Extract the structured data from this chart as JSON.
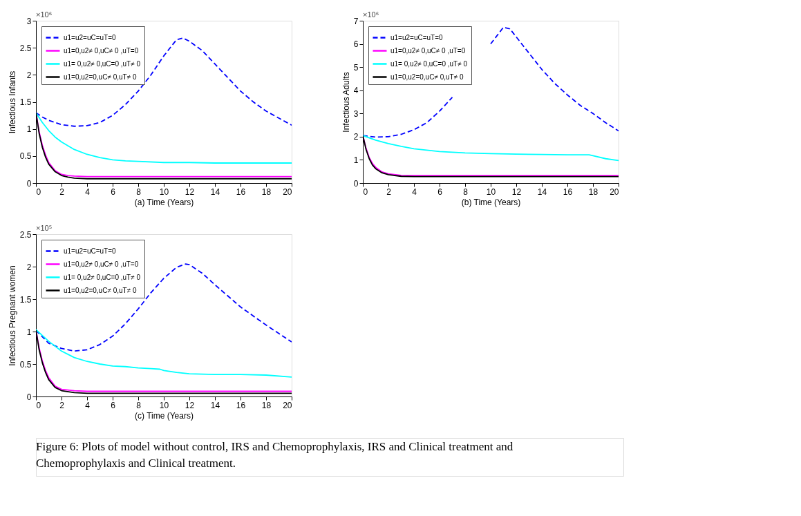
{
  "chart_data": [
    {
      "type": "line",
      "xlabel": "(a)   Time (Years)",
      "ylabel": "Infectious Infants",
      "annotations": [
        "×10⁶"
      ],
      "xlim": [
        0,
        20
      ],
      "xticks": [
        0,
        2,
        4,
        6,
        8,
        10,
        12,
        14,
        16,
        18,
        20
      ],
      "ylim": [
        0,
        3
      ],
      "yticks": [
        0,
        0.5,
        1,
        1.5,
        2,
        2.5,
        3
      ],
      "grid": false,
      "legend": "top left",
      "marker": "none",
      "series": [
        {
          "name": "u1=u2=uC=uT=0",
          "color": "#0000ff",
          "line_style": "dashed",
          "x": [
            0,
            0.5,
            1,
            2,
            3,
            4,
            5,
            6,
            7,
            8,
            9,
            10,
            11,
            11.5,
            12,
            13,
            14,
            15,
            16,
            17,
            18,
            19,
            20
          ],
          "values": [
            1.3,
            1.22,
            1.16,
            1.08,
            1.05,
            1.06,
            1.12,
            1.25,
            1.45,
            1.7,
            2.0,
            2.35,
            2.65,
            2.68,
            2.62,
            2.45,
            2.2,
            1.95,
            1.7,
            1.5,
            1.33,
            1.2,
            1.07
          ]
        },
        {
          "name": "u1=0,u2≠ 0,uC≠ 0 ,uT=0",
          "color": "#ff00ff",
          "line_style": "solid",
          "x": [
            0,
            0.25,
            0.5,
            0.75,
            1,
            1.5,
            2,
            2.5,
            3,
            4,
            6,
            8,
            10,
            12,
            14,
            16,
            18,
            20
          ],
          "values": [
            1.3,
            0.95,
            0.7,
            0.52,
            0.38,
            0.23,
            0.16,
            0.14,
            0.13,
            0.12,
            0.12,
            0.12,
            0.12,
            0.12,
            0.12,
            0.12,
            0.12,
            0.12
          ]
        },
        {
          "name": "u1= 0,u2≠ 0,uC=0 ,uT≠ 0",
          "color": "#00ffff",
          "line_style": "solid",
          "x": [
            0,
            0.5,
            1,
            1.5,
            2,
            3,
            4,
            5,
            6,
            7,
            8,
            10,
            12,
            14,
            16,
            18,
            20
          ],
          "values": [
            1.3,
            1.12,
            0.97,
            0.85,
            0.76,
            0.62,
            0.53,
            0.47,
            0.43,
            0.41,
            0.4,
            0.38,
            0.38,
            0.37,
            0.37,
            0.37,
            0.37
          ]
        },
        {
          "name": "u1=0,u2=0,uC≠ 0,uT≠ 0",
          "color": "#000000",
          "line_style": "solid",
          "x": [
            0,
            0.25,
            0.5,
            0.75,
            1,
            1.5,
            2,
            2.5,
            3,
            4,
            6,
            8,
            10,
            12,
            14,
            16,
            18,
            20
          ],
          "values": [
            1.3,
            0.92,
            0.66,
            0.48,
            0.35,
            0.21,
            0.14,
            0.11,
            0.09,
            0.08,
            0.08,
            0.08,
            0.08,
            0.08,
            0.08,
            0.08,
            0.08,
            0.08
          ]
        }
      ]
    },
    {
      "type": "line",
      "xlabel": "(b)   Time (Years)",
      "ylabel": "Infectious Adults",
      "annotations": [
        "×10⁶"
      ],
      "xlim": [
        0,
        20
      ],
      "xticks": [
        0,
        2,
        4,
        6,
        8,
        10,
        12,
        14,
        16,
        18,
        20
      ],
      "ylim": [
        0,
        7
      ],
      "yticks": [
        0,
        1,
        2,
        3,
        4,
        5,
        6,
        7
      ],
      "grid": false,
      "legend": "top left",
      "marker": "none",
      "series": [
        {
          "name": "u1=u2=uC=uT=0",
          "color": "#0000ff",
          "line_style": "dashed",
          "x": [
            0,
            1,
            2,
            3,
            4,
            5,
            6,
            7,
            8,
            9,
            10,
            11,
            11.5,
            12,
            13,
            14,
            15,
            16,
            17,
            18,
            19,
            20
          ],
          "values": [
            2.05,
            1.98,
            2.0,
            2.1,
            2.3,
            2.6,
            3.1,
            3.7,
            null,
            null,
            6.0,
            6.72,
            6.65,
            6.3,
            5.6,
            4.9,
            4.3,
            3.8,
            3.35,
            3.0,
            2.6,
            2.25
          ]
        },
        {
          "name": "u1=0,u2≠ 0,uC≠ 0 ,uT=0",
          "color": "#ff00ff",
          "line_style": "solid",
          "x": [
            0,
            0.25,
            0.5,
            0.75,
            1,
            1.5,
            2,
            3,
            4,
            6,
            8,
            10,
            12,
            14,
            16,
            18,
            20
          ],
          "values": [
            2.05,
            1.5,
            1.1,
            0.85,
            0.68,
            0.48,
            0.4,
            0.33,
            0.32,
            0.32,
            0.32,
            0.32,
            0.32,
            0.32,
            0.32,
            0.32,
            0.32
          ]
        },
        {
          "name": "u1= 0,u2≠ 0,uC=0 ,uT≠ 0",
          "color": "#00ffff",
          "line_style": "solid",
          "x": [
            0,
            1,
            2,
            3,
            4,
            6,
            8,
            10,
            12,
            14,
            16,
            17.7,
            18,
            19,
            20
          ],
          "values": [
            2.05,
            1.85,
            1.7,
            1.58,
            1.48,
            1.36,
            1.3,
            1.27,
            1.25,
            1.23,
            1.22,
            1.22,
            1.18,
            1.05,
            0.97
          ]
        },
        {
          "name": "u1=0,u2=0,uC≠ 0,uT≠ 0",
          "color": "#000000",
          "line_style": "solid",
          "x": [
            0,
            0.25,
            0.5,
            0.75,
            1,
            1.5,
            2,
            3,
            4,
            6,
            8,
            10,
            12,
            14,
            16,
            18,
            20
          ],
          "values": [
            2.05,
            1.45,
            1.05,
            0.78,
            0.62,
            0.44,
            0.36,
            0.29,
            0.28,
            0.28,
            0.28,
            0.28,
            0.28,
            0.28,
            0.28,
            0.28,
            0.28
          ]
        }
      ]
    },
    {
      "type": "line",
      "xlabel": "(c)   Time (Years)",
      "ylabel": "Infectious Pregnant women",
      "annotations": [
        "×10⁵",
        "Figure 6: Plots of model without control, IRS and Chemoprophylaxis, IRS and Clinical treatment and Chemoprophylaxis and Clinical treatment."
      ],
      "xlim": [
        0,
        20
      ],
      "xticks": [
        0,
        2,
        4,
        6,
        8,
        10,
        12,
        14,
        16,
        18,
        20
      ],
      "ylim": [
        0,
        2.5
      ],
      "yticks": [
        0,
        0.5,
        1,
        1.5,
        2,
        2.5
      ],
      "grid": false,
      "legend": "top left",
      "marker": "none",
      "series": [
        {
          "name": "u1=u2=uC=uT=0",
          "color": "#0000ff",
          "line_style": "dashed",
          "x": [
            0,
            1,
            2,
            3,
            4,
            5,
            6,
            7,
            8,
            9,
            10,
            11,
            11.7,
            12,
            13,
            14,
            15,
            16,
            17,
            18,
            19,
            20
          ],
          "values": [
            1.02,
            0.82,
            0.74,
            0.7,
            0.72,
            0.8,
            0.93,
            1.12,
            1.35,
            1.6,
            1.82,
            1.99,
            2.04,
            2.03,
            1.9,
            1.72,
            1.55,
            1.38,
            1.24,
            1.1,
            0.97,
            0.84
          ]
        },
        {
          "name": "u1=0,u2≠ 0,uC≠ 0 ,uT=0",
          "color": "#ff00ff",
          "line_style": "solid",
          "x": [
            0,
            0.25,
            0.5,
            0.75,
            1,
            1.5,
            2,
            3,
            4,
            6,
            8,
            10,
            12,
            14,
            16,
            18,
            20
          ],
          "values": [
            1.02,
            0.75,
            0.55,
            0.4,
            0.29,
            0.16,
            0.11,
            0.09,
            0.08,
            0.08,
            0.08,
            0.08,
            0.08,
            0.08,
            0.08,
            0.08,
            0.08
          ]
        },
        {
          "name": "u1= 0,u2≠ 0,uC=0 ,uT≠ 0",
          "color": "#00ffff",
          "line_style": "solid",
          "x": [
            0,
            1,
            2,
            3,
            4,
            5,
            6,
            7,
            8,
            9,
            9.7,
            10,
            11,
            12,
            14,
            16,
            18,
            20
          ],
          "values": [
            1.03,
            0.85,
            0.7,
            0.6,
            0.54,
            0.5,
            0.47,
            0.46,
            0.44,
            0.43,
            0.42,
            0.4,
            0.37,
            0.35,
            0.34,
            0.34,
            0.33,
            0.3
          ]
        },
        {
          "name": "u1=0,u2=0,uC≠ 0,uT≠ 0",
          "color": "#000000",
          "line_style": "solid",
          "x": [
            0,
            0.25,
            0.5,
            0.75,
            1,
            1.5,
            2,
            3,
            4,
            6,
            8,
            10,
            12,
            14,
            16,
            18,
            20
          ],
          "values": [
            1.02,
            0.72,
            0.52,
            0.37,
            0.26,
            0.14,
            0.09,
            0.06,
            0.05,
            0.05,
            0.05,
            0.05,
            0.05,
            0.05,
            0.05,
            0.05,
            0.05
          ]
        }
      ]
    }
  ]
}
